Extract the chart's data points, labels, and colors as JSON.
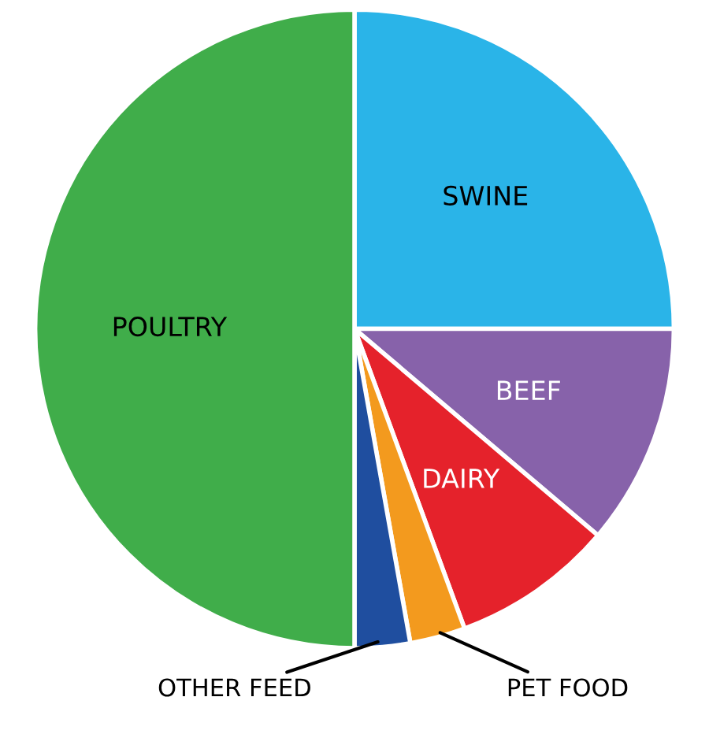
{
  "chart_data": {
    "type": "pie",
    "categories": [
      "SWINE",
      "BEEF",
      "DAIRY",
      "PET FOOD",
      "OTHER FEED",
      "POULTRY"
    ],
    "values": [
      25,
      11.2,
      8.2,
      2.8,
      2.8,
      50
    ],
    "colors": [
      "#2ab4e8",
      "#8762aa",
      "#e5222b",
      "#f39a1e",
      "#1f4e9f",
      "#40ad4a"
    ],
    "legend": false
  }
}
